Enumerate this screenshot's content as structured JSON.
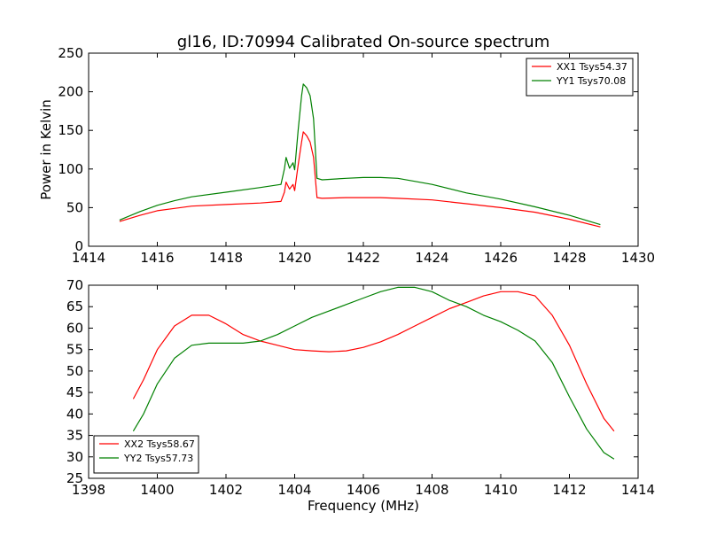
{
  "title": "gl16, ID:70994 Calibrated On-source spectrum",
  "chart_data": [
    {
      "type": "line",
      "title": "gl16, ID:70994 Calibrated On-source spectrum",
      "xlabel": "",
      "ylabel": "Power in Kelvin",
      "xlim": [
        1414,
        1430
      ],
      "ylim": [
        0,
        250
      ],
      "xticks": [
        1414,
        1416,
        1418,
        1420,
        1422,
        1424,
        1426,
        1428,
        1430
      ],
      "yticks": [
        0,
        50,
        100,
        150,
        200,
        250
      ],
      "grid": false,
      "legend_position": "top-right",
      "series": [
        {
          "name": "XX1 Tsys54.37",
          "color": "#ff0000",
          "x": [
            1414.9,
            1415.5,
            1416,
            1416.5,
            1417,
            1418,
            1419,
            1419.6,
            1419.7,
            1419.75,
            1419.85,
            1419.95,
            1420.0,
            1420.1,
            1420.2,
            1420.25,
            1420.35,
            1420.45,
            1420.55,
            1420.65,
            1420.8,
            1421.5,
            1422,
            1422.5,
            1423,
            1424,
            1425,
            1426,
            1427,
            1428,
            1428.9
          ],
          "y": [
            32,
            40,
            46,
            49,
            52,
            54,
            56,
            58,
            70,
            83,
            74,
            80,
            72,
            105,
            135,
            148,
            143,
            135,
            115,
            63,
            62,
            63,
            63,
            63,
            62,
            60,
            55,
            50,
            44,
            35,
            25
          ]
        },
        {
          "name": "YY1 Tsys70.08",
          "color": "#008000",
          "x": [
            1414.9,
            1415.5,
            1416,
            1416.5,
            1417,
            1418,
            1419,
            1419.6,
            1419.7,
            1419.75,
            1419.85,
            1419.95,
            1420.0,
            1420.1,
            1420.2,
            1420.25,
            1420.35,
            1420.45,
            1420.55,
            1420.65,
            1420.8,
            1421.5,
            1422,
            1422.5,
            1423,
            1424,
            1425,
            1426,
            1427,
            1428,
            1428.9
          ],
          "y": [
            34,
            45,
            53,
            59,
            64,
            70,
            76,
            80,
            100,
            115,
            101,
            108,
            99,
            150,
            195,
            210,
            205,
            195,
            165,
            88,
            86,
            88,
            89,
            89,
            88,
            80,
            69,
            61,
            51,
            40,
            28
          ]
        }
      ]
    },
    {
      "type": "line",
      "title": "",
      "xlabel": "Frequency (MHz)",
      "ylabel": "",
      "xlim": [
        1398,
        1414
      ],
      "ylim": [
        25,
        70
      ],
      "xticks": [
        1398,
        1400,
        1402,
        1404,
        1406,
        1408,
        1410,
        1412,
        1414
      ],
      "yticks": [
        25,
        30,
        35,
        40,
        45,
        50,
        55,
        60,
        65,
        70
      ],
      "grid": false,
      "legend_position": "bottom-left",
      "series": [
        {
          "name": "XX2 Tsys58.67",
          "color": "#ff0000",
          "x": [
            1399.3,
            1399.6,
            1400,
            1400.5,
            1401,
            1401.5,
            1402,
            1402.5,
            1403,
            1403.5,
            1404,
            1404.5,
            1405,
            1405.5,
            1406,
            1406.5,
            1407,
            1407.5,
            1408,
            1408.5,
            1409,
            1409.5,
            1410,
            1410.5,
            1411,
            1411.5,
            1412,
            1412.5,
            1413,
            1413.3
          ],
          "y": [
            43.5,
            48,
            55,
            60.5,
            63,
            63,
            61,
            58.5,
            57,
            56,
            55,
            54.7,
            54.5,
            54.7,
            55.5,
            56.8,
            58.5,
            60.5,
            62.5,
            64.5,
            66,
            67.5,
            68.5,
            68.5,
            67.5,
            63,
            56,
            47,
            39,
            36
          ]
        },
        {
          "name": "YY2 Tsys57.73",
          "color": "#008000",
          "x": [
            1399.3,
            1399.6,
            1400,
            1400.5,
            1401,
            1401.5,
            1402,
            1402.5,
            1403,
            1403.5,
            1404,
            1404.5,
            1405,
            1405.5,
            1406,
            1406.5,
            1407,
            1407.5,
            1408,
            1408.5,
            1409,
            1409.5,
            1410,
            1410.5,
            1411,
            1411.5,
            1412,
            1412.5,
            1413,
            1413.3
          ],
          "y": [
            36,
            40,
            47,
            53,
            56,
            56.5,
            56.5,
            56.5,
            57,
            58.5,
            60.5,
            62.5,
            64,
            65.5,
            67,
            68.5,
            69.5,
            69.5,
            68.5,
            66.5,
            65,
            63,
            61.5,
            59.5,
            57,
            52,
            44,
            36.5,
            31,
            29.5
          ]
        }
      ]
    }
  ]
}
